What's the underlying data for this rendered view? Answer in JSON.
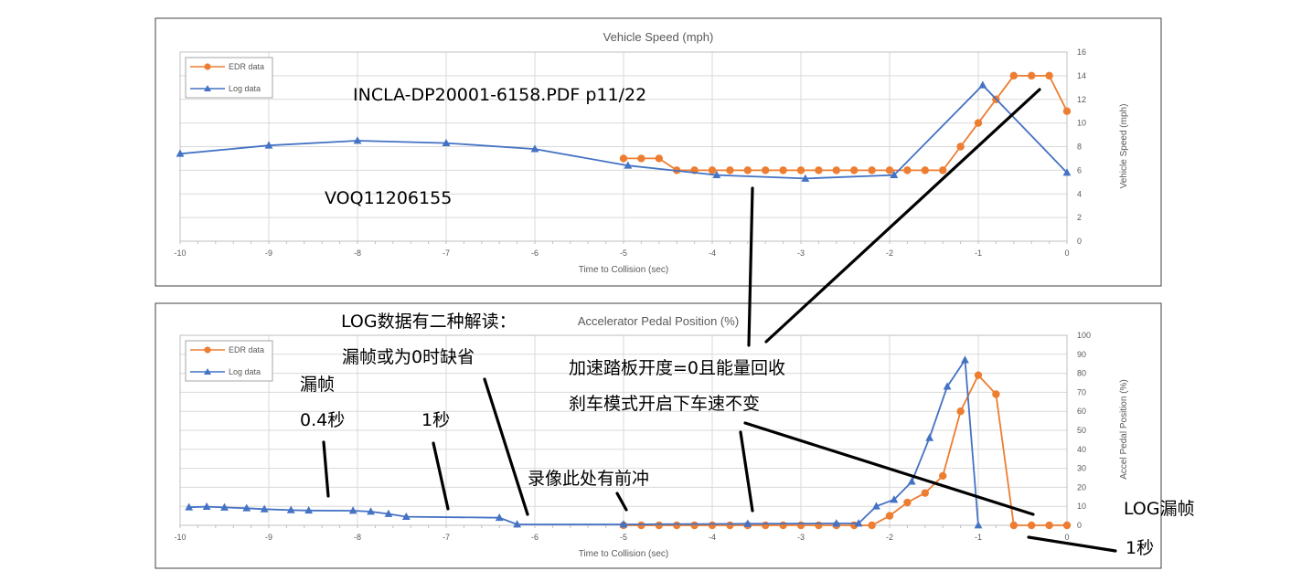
{
  "chart_data": [
    {
      "type": "line",
      "title": "Vehicle Speed (mph)",
      "xlabel": "Time to Collision (sec)",
      "ylabel": "Vehicle Speed (mph)",
      "xlim": [
        -10,
        0
      ],
      "ylim": [
        0,
        16
      ],
      "x_ticks": [
        -10,
        -9,
        -8,
        -7,
        -6,
        -5,
        -4,
        -3,
        -2,
        -1,
        0
      ],
      "y_ticks": [
        0,
        2,
        4,
        6,
        8,
        10,
        12,
        14,
        16
      ],
      "y_axis_side": "right",
      "grid": true,
      "legend": "top-left",
      "series": [
        {
          "name": "EDR data",
          "color": "#ed7d31",
          "marker": "circle",
          "x": [
            -5.0,
            -4.8,
            -4.6,
            -4.4,
            -4.2,
            -4.0,
            -3.8,
            -3.6,
            -3.4,
            -3.2,
            -3.0,
            -2.8,
            -2.6,
            -2.4,
            -2.2,
            -2.0,
            -1.8,
            -1.6,
            -1.4,
            -1.2,
            -1.0,
            -0.8,
            -0.6,
            -0.4,
            -0.2,
            0.0
          ],
          "y": [
            7,
            7,
            7,
            6,
            6,
            6,
            6,
            6,
            6,
            6,
            6,
            6,
            6,
            6,
            6,
            6,
            6,
            6,
            6,
            8,
            10,
            12,
            14,
            14,
            14,
            11
          ]
        },
        {
          "name": "Log data",
          "color": "#4472c4",
          "marker": "triangle",
          "x": [
            -10.0,
            -9.0,
            -8.0,
            -7.0,
            -6.0,
            -4.95,
            -3.95,
            -2.95,
            -1.95,
            -0.95,
            0.0
          ],
          "y": [
            7.4,
            8.1,
            8.5,
            8.3,
            7.8,
            6.4,
            5.6,
            5.3,
            5.6,
            13.2,
            5.8
          ]
        }
      ]
    },
    {
      "type": "line",
      "title": "Accelerator Pedal Position (%)",
      "xlabel": "Time to Collision (sec)",
      "ylabel": "Accel Pedal Position (%)",
      "xlim": [
        -10,
        0
      ],
      "ylim": [
        0,
        100
      ],
      "x_ticks": [
        -10,
        -9,
        -8,
        -7,
        -6,
        -5,
        -4,
        -3,
        -2,
        -1,
        0
      ],
      "y_ticks": [
        0,
        10,
        20,
        30,
        40,
        50,
        60,
        70,
        80,
        90,
        100
      ],
      "y_axis_side": "right",
      "grid": true,
      "legend": "top-left",
      "series": [
        {
          "name": "EDR data",
          "color": "#ed7d31",
          "marker": "circle",
          "x": [
            -5.0,
            -4.8,
            -4.6,
            -4.4,
            -4.2,
            -4.0,
            -3.8,
            -3.6,
            -3.4,
            -3.2,
            -3.0,
            -2.8,
            -2.6,
            -2.4,
            -2.2,
            -2.0,
            -1.8,
            -1.6,
            -1.4,
            -1.2,
            -1.0,
            -0.8,
            -0.6,
            -0.4,
            -0.2,
            0.0
          ],
          "y": [
            0,
            0,
            0,
            0,
            0,
            0,
            0,
            0,
            0,
            0,
            0,
            0,
            0,
            0,
            0,
            5,
            12,
            17,
            26,
            60,
            79,
            69,
            0,
            0,
            0,
            0
          ]
        },
        {
          "name": "Log data",
          "color": "#4472c4",
          "marker": "triangle",
          "x": [
            -9.9,
            -9.7,
            -9.5,
            -9.25,
            -9.05,
            -8.75,
            -8.55,
            -8.05,
            -7.85,
            -7.65,
            -7.45,
            -6.4,
            -6.2,
            -5.0,
            -3.6,
            -2.6,
            -2.35,
            -2.15,
            -1.95,
            -1.75,
            -1.55,
            -1.35,
            -1.15,
            -1.0
          ],
          "y": [
            9.5,
            9.8,
            9.4,
            9.0,
            8.5,
            8.0,
            7.8,
            7.7,
            7.2,
            6.0,
            4.5,
            4.0,
            0.5,
            0.5,
            0.8,
            1.0,
            1.0,
            10.0,
            13.5,
            23.0,
            46.0,
            73.0,
            87.0,
            0.0
          ]
        }
      ]
    }
  ],
  "annotations": {
    "pdf_ref": "INCLA-DP20001-6158.PDF p11/22",
    "voq": "VOQ11206155",
    "log_two_readings": "LOG数据有二种解读：",
    "missing_or_zero": "漏帧或为0时缺省",
    "missing_frame": "漏帧",
    "sec_04": "0.4秒",
    "sec_1": "1秒",
    "pedal_zero_regen": "加速踏板开度=0且能量回收",
    "brake_mode_speed": "刹车模式开启下车速不变",
    "video_surge": "录像此处有前冲",
    "log_missing_frame": "LOG漏帧",
    "log_missing_1s": "1秒"
  }
}
